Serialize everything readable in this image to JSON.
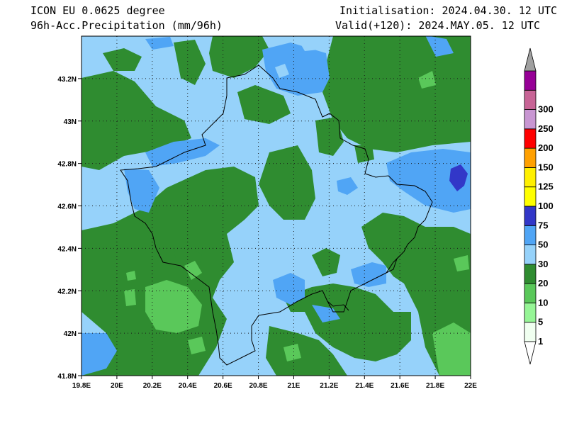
{
  "header": {
    "model": "ICON EU 0.0625 degree",
    "field": "96h-Acc.Precipitation (mm/96h)",
    "init": "Initialisation: 2024.04.30. 12 UTC",
    "valid": "Valid(+120): 2024.MAY.05. 12 UTC"
  },
  "map": {
    "lon_range": [
      19.8,
      22.0
    ],
    "lat_range": [
      41.8,
      43.4
    ],
    "x_ticks": [
      {
        "value": 19.8,
        "label": "19.8E"
      },
      {
        "value": 20.0,
        "label": "20E"
      },
      {
        "value": 20.2,
        "label": "20.2E"
      },
      {
        "value": 20.4,
        "label": "20.4E"
      },
      {
        "value": 20.6,
        "label": "20.6E"
      },
      {
        "value": 20.8,
        "label": "20.8E"
      },
      {
        "value": 21.0,
        "label": "21E"
      },
      {
        "value": 21.2,
        "label": "21.2E"
      },
      {
        "value": 21.4,
        "label": "21.4E"
      },
      {
        "value": 21.6,
        "label": "21.6E"
      },
      {
        "value": 21.8,
        "label": "21.8E"
      },
      {
        "value": 22.0,
        "label": "22E"
      }
    ],
    "y_ticks": [
      {
        "value": 41.8,
        "label": "41.8N"
      },
      {
        "value": 42.0,
        "label": "42N"
      },
      {
        "value": 42.2,
        "label": "42.2N"
      },
      {
        "value": 42.4,
        "label": "42.4N"
      },
      {
        "value": 42.6,
        "label": "42.6N"
      },
      {
        "value": 42.8,
        "label": "42.8N"
      },
      {
        "value": 43.0,
        "label": "43N"
      },
      {
        "value": 43.2,
        "label": "43.2N"
      }
    ],
    "grid": "dotted"
  },
  "colorbar": {
    "levels": [
      {
        "label": "1",
        "color": "#f0fff0"
      },
      {
        "label": "5",
        "color": "#96f596"
      },
      {
        "label": "10",
        "color": "#5ac85a"
      },
      {
        "label": "20",
        "color": "#2f8c30"
      },
      {
        "label": "30",
        "color": "#96d2fa"
      },
      {
        "label": "50",
        "color": "#50a5f5"
      },
      {
        "label": "75",
        "color": "#3237c8"
      },
      {
        "label": "100",
        "color": "#ffff00"
      },
      {
        "label": "125",
        "color": "#fff000"
      },
      {
        "label": "150",
        "color": "#ffa000"
      },
      {
        "label": "200",
        "color": "#ff0000"
      },
      {
        "label": "250",
        "color": "#c896d2"
      },
      {
        "label": "300",
        "color": "#c86496"
      },
      {
        "label": "",
        "color": "#960096"
      }
    ],
    "overflow_color": "#a0a0a0"
  }
}
